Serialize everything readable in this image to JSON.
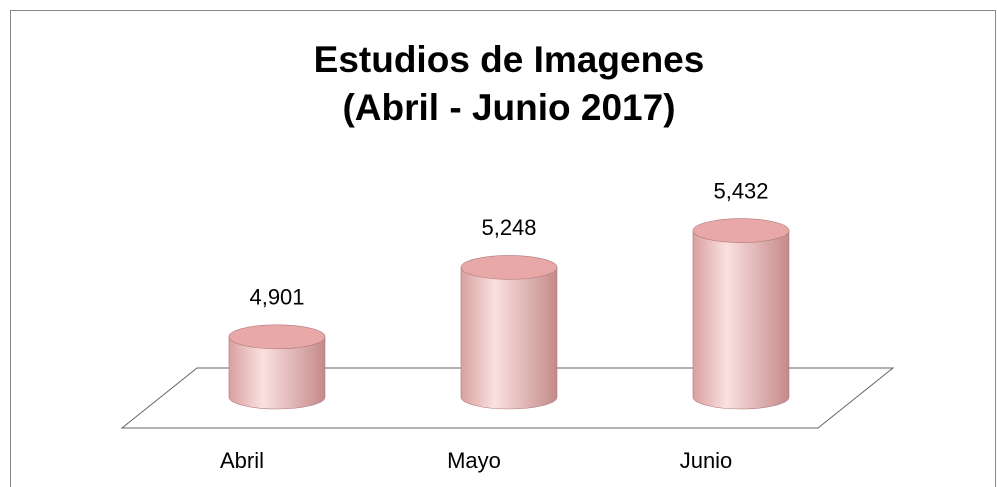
{
  "chart_data": {
    "type": "bar3d",
    "title": [
      "Estudios de Imagenes",
      "(Abril - Junio 2017)"
    ],
    "categories": [
      "Abril",
      "Mayo",
      "Junio"
    ],
    "values": [
      4901,
      5248,
      5432
    ],
    "value_labels": [
      "4,901",
      "5,248",
      "5,432"
    ],
    "color": "#e8a8a8",
    "ylim": [
      4600,
      5500
    ]
  }
}
